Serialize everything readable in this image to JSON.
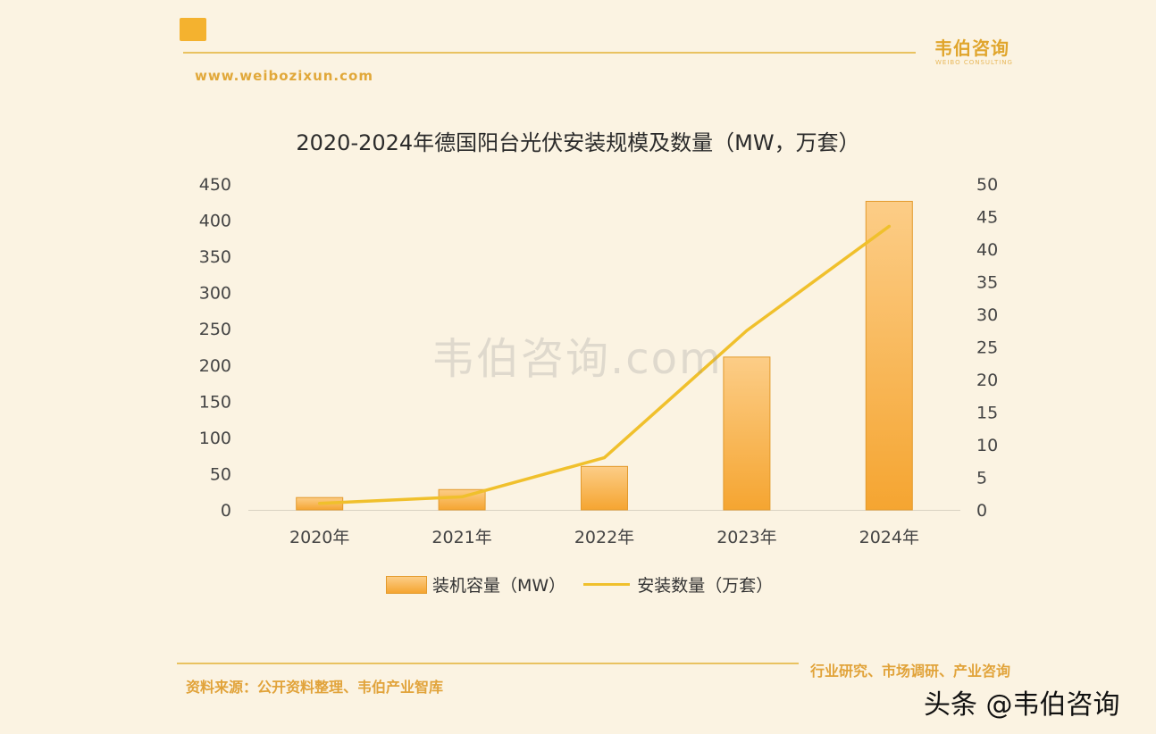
{
  "header": {
    "brand_name": "韦伯咨询",
    "brand_sub": "WEIBO CONSULTING",
    "website": "www.weibozixun.com"
  },
  "watermark": "韦伯咨询.com",
  "footer": {
    "source": "资料来源：公开资料整理、韦伯产业智库",
    "tagline": "行业研究、市场调研、产业咨询",
    "platform_watermark": "头条 @韦伯咨询"
  },
  "colors": {
    "bar_top": "#fccd87",
    "bar_bottom": "#f5a531",
    "line": "#f0c02c",
    "accent": "#f4b22f"
  },
  "chart_data": {
    "type": "bar",
    "title": "2020-2024年德国阳台光伏安装规模及数量（MW，万套）",
    "categories": [
      "2020年",
      "2021年",
      "2022年",
      "2023年",
      "2024年"
    ],
    "series": [
      {
        "name": "装机容量（MW）",
        "type": "bar",
        "axis": "left",
        "values": [
          17,
          28,
          60,
          211,
          426
        ]
      },
      {
        "name": "安装数量（万套）",
        "type": "line",
        "axis": "right",
        "values": [
          1,
          2,
          8,
          27.5,
          43.5
        ]
      }
    ],
    "y_left": {
      "min": 0,
      "max": 450,
      "ticks": [
        0,
        50,
        100,
        150,
        200,
        250,
        300,
        350,
        400,
        450
      ]
    },
    "y_right": {
      "min": 0,
      "max": 50,
      "ticks": [
        0,
        5,
        10,
        15,
        20,
        25,
        30,
        35,
        40,
        45,
        50
      ]
    },
    "grid": false,
    "legend_position": "bottom"
  }
}
